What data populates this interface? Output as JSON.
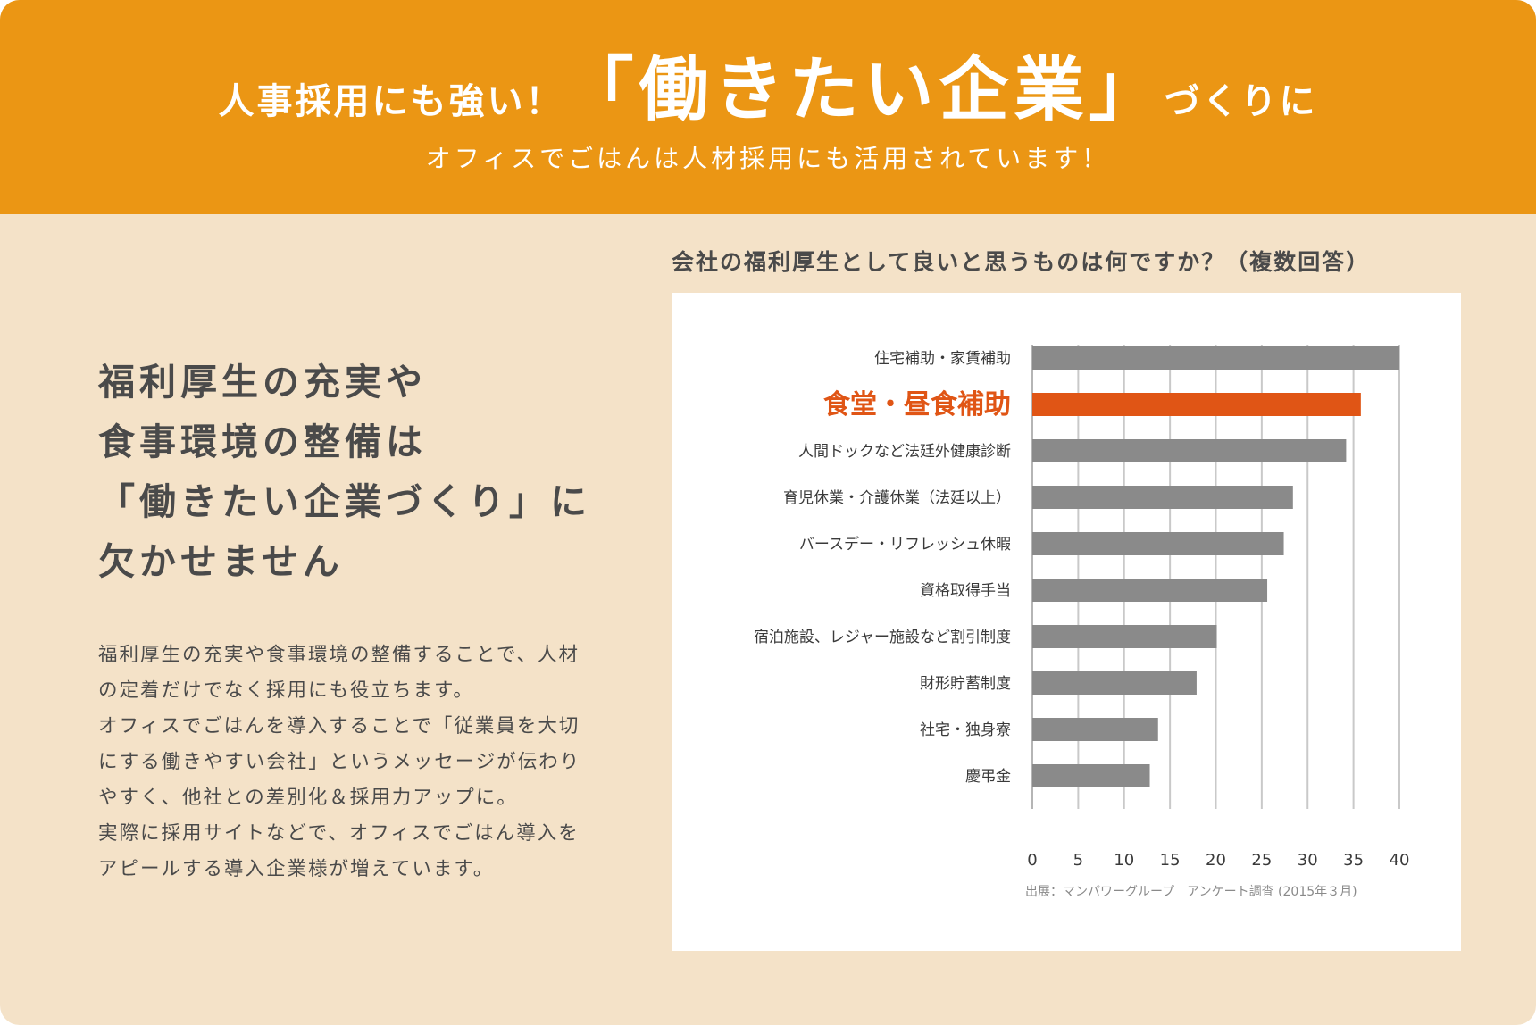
{
  "header": {
    "headline_part1": "人事採用にも強い！",
    "headline_part2": "「働きたい企業」",
    "headline_part3": "づくりに",
    "subheadline": "オフィスでごはんは人材採用にも活用されています！"
  },
  "left": {
    "lead_lines": [
      "福利厚生の充実や",
      "食事環境の整備は",
      "「働きたい企業づくり」に",
      "欠かせません"
    ],
    "body_lines": [
      "福利厚生の充実や食事環境の整備することで、人材",
      "の定着だけでなく採用にも役立ちます。",
      "オフィスでごはんを導入することで「従業員を大切",
      "にする働きやすい会社」というメッセージが伝わり",
      "やすく、他社との差別化＆採用力アップに。",
      "実際に採用サイトなどで、オフィスでごはん導入を",
      "アピールする導入企業様が増えています。"
    ]
  },
  "colors": {
    "banner": "#eb9614",
    "background": "#f4e2c8",
    "bar_default": "#8a8a8a",
    "bar_highlight": "#e05515",
    "text": "#4a4a4a"
  },
  "chart_data": {
    "type": "bar",
    "orientation": "horizontal",
    "title": "会社の福利厚生として良いと思うものは何ですか？（複数回答）",
    "categories": [
      "住宅補助・家賃補助",
      "食堂・昼食補助",
      "人間ドックなど法廷外健康診断",
      "育児休業・介護休業（法廷以上）",
      "バースデー・リフレッシュ休暇",
      "資格取得手当",
      "宿泊施設、レジャー施設など割引制度",
      "財形貯蓄制度",
      "社宅・独身寮",
      "慶弔金"
    ],
    "values": [
      40,
      35.8,
      34.2,
      28.4,
      27.4,
      25.6,
      20.1,
      17.9,
      13.7,
      12.8
    ],
    "highlight": "食堂・昼食補助",
    "xlim": [
      0,
      40
    ],
    "xticks": [
      0,
      5,
      10,
      15,
      20,
      25,
      30,
      35,
      40
    ],
    "grid": true,
    "source": "出展：マンパワーグループ　アンケート調査 (2015年３月)"
  }
}
